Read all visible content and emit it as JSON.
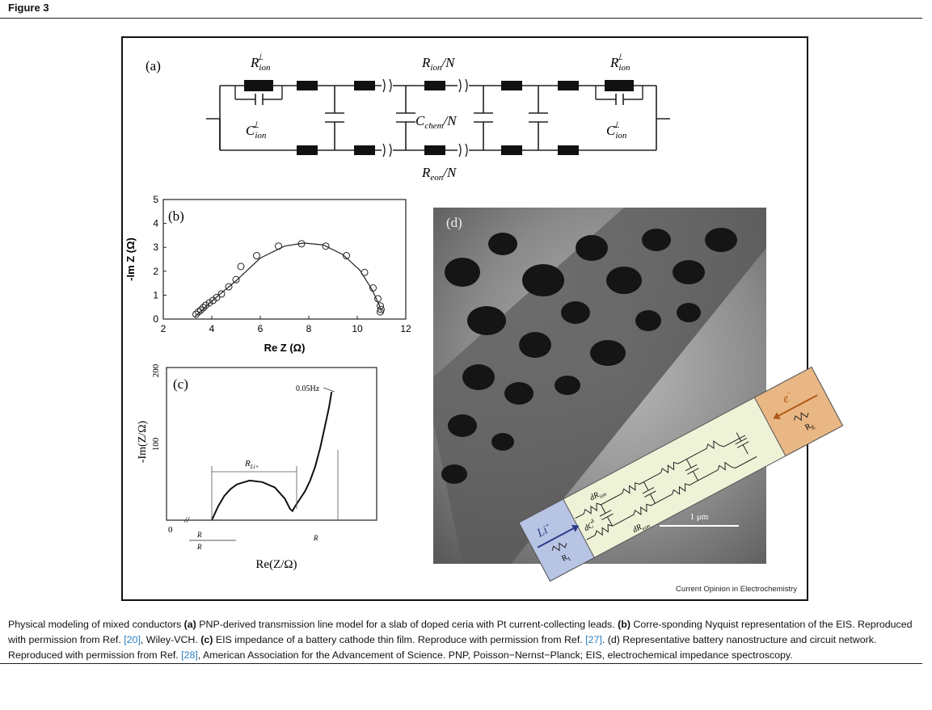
{
  "figure": {
    "label": "Figure 3",
    "credit": "Current Opinion in Electrochemistry"
  },
  "panel_a": {
    "label": "(a)",
    "r_ion_perp": "R",
    "r_ion_perp_sub": "ion",
    "perp_sup": "⊥",
    "c_ion_perp": "C",
    "c_ion_perp_sub": "ion",
    "r_ion_n": "R",
    "r_ion_n_sub": "ion",
    "r_ion_n_suffix": "/N",
    "c_chem": "C",
    "c_chem_sub": "chem",
    "c_chem_suffix": "/N",
    "r_eon": "R",
    "r_eon_sub": "eon",
    "r_eon_suffix": "/N"
  },
  "panel_b": {
    "label": "(b)",
    "xlabel": "Re Z (Ω)",
    "ylabel": "-Im Z (Ω)",
    "xticks": [
      "2",
      "4",
      "6",
      "8",
      "10",
      "12"
    ],
    "yticks": [
      "0",
      "1",
      "2",
      "3",
      "4",
      "5"
    ]
  },
  "panel_c": {
    "label": "(c)",
    "ylabel": "-Im(Z/Ω)",
    "xlabel": "Re(Z/Ω)",
    "ytick_0": "0",
    "ytick_100": "100",
    "ytick_200": "200",
    "annotation": "0.05Hz",
    "r_li_label": "R",
    "r_li_sub": "Li+",
    "x_left_num": "R",
    "x_left_den": "R",
    "x_right": "R",
    "break_mark": "//"
  },
  "panel_d": {
    "label": "(d)",
    "li_ion": "Li",
    "li_sup": "+",
    "electron": "e",
    "electron_sup": "−",
    "r_i": "R",
    "r_i_sub": "I",
    "r_e": "R",
    "r_e_sub": "E",
    "d_r_ion": "dR",
    "d_r_ion_sub": "ion",
    "d_r_eon": "dR",
    "d_r_eon_sub": "eon",
    "d_c": "dC",
    "d_c_sup": "δ",
    "scale": "1 μm"
  },
  "caption": {
    "t1": "Physical modeling of mixed conductors ",
    "b1": "(a)",
    "t2": " PNP-derived transmission line model for a slab of doped ceria with Pt current-collecting leads. ",
    "b2": "(b)",
    "t3": " Corre-sponding Nyquist representation of the EIS. Reproduced with permission from Ref. ",
    "ref1": "[20]",
    "t4": ", Wiley-VCH. ",
    "b3": "(c)",
    "t5": " EIS impedance of a battery cathode thin film. Reproduce with permission from Ref. ",
    "ref2": "[27]",
    "t6": ". (d) Representative battery nanostructure and circuit network. Reproduced with permission from Ref. ",
    "ref3": "[28]",
    "t7": ", American Association for the Advancement of Science. PNP, Poisson−Nernst−Planck; EIS, electrochemical impedance spectroscopy."
  },
  "chart_data": [
    {
      "type": "scatter",
      "panel": "(b)",
      "xlabel": "Re Z (Ω)",
      "ylabel": "-Im Z (Ω)",
      "xlim": [
        2,
        12
      ],
      "ylim": [
        0,
        5
      ],
      "markers": "open circles",
      "points_x": [
        3.35,
        3.45,
        3.55,
        3.65,
        3.75,
        3.9,
        4.05,
        4.2,
        4.4,
        4.7,
        5.0,
        5.2,
        5.85,
        6.75,
        7.7,
        8.7,
        9.55,
        10.3,
        10.65,
        10.85,
        10.95,
        10.98,
        10.95
      ],
      "points_y": [
        0.2,
        0.3,
        0.38,
        0.48,
        0.58,
        0.68,
        0.78,
        0.9,
        1.05,
        1.35,
        1.65,
        2.2,
        2.65,
        3.05,
        3.15,
        3.05,
        2.65,
        1.95,
        1.3,
        0.85,
        0.55,
        0.4,
        0.3
      ],
      "fit_x": [
        3.3,
        4.0,
        5.0,
        6.0,
        7.0,
        7.8,
        8.6,
        9.4,
        10.1,
        10.6,
        10.9,
        11.0
      ],
      "fit_y": [
        0.1,
        0.75,
        1.6,
        2.55,
        3.05,
        3.18,
        3.1,
        2.7,
        2.05,
        1.25,
        0.6,
        0.3
      ]
    },
    {
      "type": "line",
      "panel": "(c)",
      "xlabel": "Re(Z/Ω)",
      "ylabel": "-Im(Z/Ω)",
      "ylim": [
        0,
        200
      ],
      "yticks": [
        0,
        100,
        200
      ],
      "annotation": "0.05Hz",
      "x": [
        0,
        0.05,
        0.1,
        0.15,
        0.2,
        0.3,
        0.4,
        0.5,
        0.58,
        0.62,
        0.64,
        0.66,
        0.7,
        0.74,
        0.78,
        0.82,
        0.86,
        0.9,
        0.93,
        0.95
      ],
      "y": [
        0,
        18,
        32,
        41,
        47,
        52,
        50,
        43,
        28,
        15,
        12,
        18,
        28,
        38,
        52,
        70,
        95,
        125,
        148,
        168
      ]
    }
  ]
}
